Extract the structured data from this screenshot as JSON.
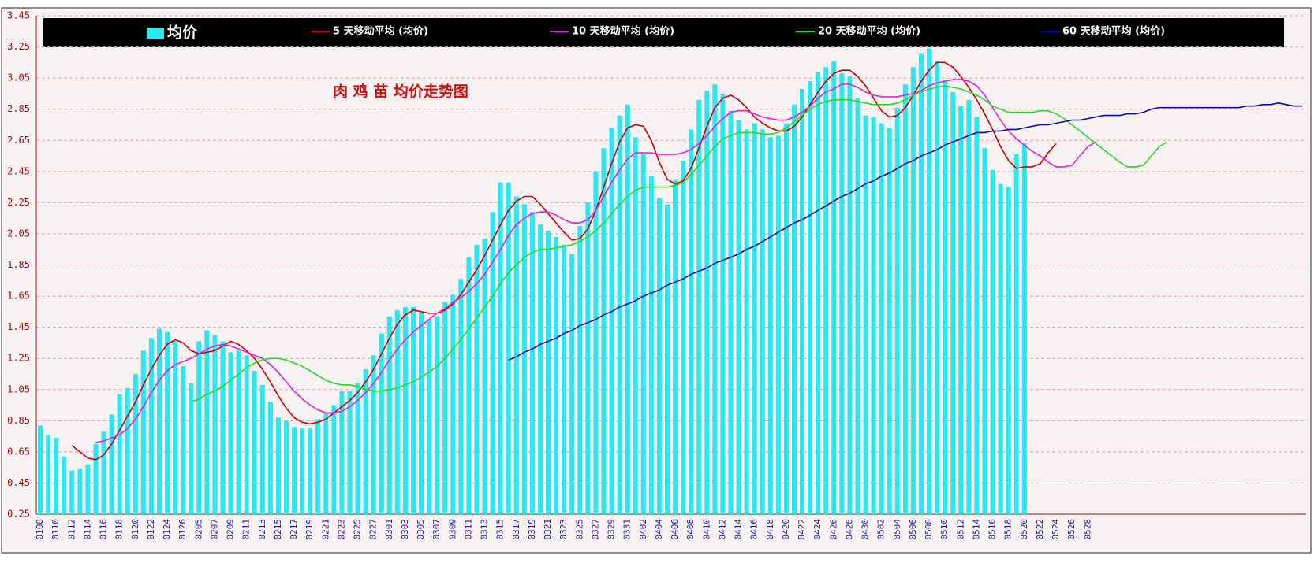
{
  "chart_data": {
    "type": "bar_line",
    "title": "肉 鸡 苗 均价走势图",
    "legend": "top",
    "grid": true,
    "ylim": [
      0.25,
      3.45
    ],
    "yticks": [
      0.25,
      0.45,
      0.65,
      0.85,
      1.05,
      1.25,
      1.45,
      1.65,
      1.85,
      2.05,
      2.25,
      2.45,
      2.65,
      2.85,
      3.05,
      3.25,
      3.45
    ],
    "categories": [
      "0108",
      null,
      "0110",
      null,
      "0112",
      null,
      "0114",
      null,
      "0116",
      null,
      "0118",
      null,
      "0120",
      null,
      "0122",
      null,
      "0124",
      null,
      "0126",
      null,
      "0205",
      null,
      "0207",
      null,
      "0209",
      null,
      "0211",
      null,
      "0213",
      null,
      "0215",
      null,
      "0217",
      null,
      "0219",
      null,
      "0221",
      null,
      "0223",
      null,
      "0225",
      null,
      "0227",
      null,
      "0301",
      null,
      "0303",
      null,
      "0305",
      null,
      "0307",
      null,
      "0309",
      null,
      "0311",
      null,
      "0313",
      null,
      "0315",
      null,
      "0317",
      null,
      "0319",
      null,
      "0321",
      null,
      "0323",
      null,
      "0325",
      null,
      "0327",
      null,
      "0329",
      null,
      "0331",
      null,
      "0402",
      null,
      "0404",
      null,
      "0406",
      null,
      "0408",
      null,
      "0410",
      null,
      "0412",
      null,
      "0414",
      null,
      "0416",
      null,
      "0418",
      null,
      "0420",
      null,
      "0422",
      null,
      "0424",
      null,
      "0426",
      null,
      "0428",
      null,
      "0430",
      null,
      "0502",
      null,
      "0504",
      null,
      "0506",
      null,
      "0508",
      null,
      "0510",
      null,
      "0512",
      null,
      "0514",
      null,
      "0516",
      null,
      "0518",
      null,
      "0520",
      null,
      "0522",
      null,
      "0524",
      null,
      "0526",
      null,
      "0528",
      null,
      null,
      null,
      null,
      null,
      null,
      null,
      null,
      null,
      null,
      null,
      null,
      null,
      null,
      null,
      null,
      null,
      null,
      null,
      null,
      null,
      null,
      null,
      null,
      null,
      null,
      null
    ],
    "series": [
      {
        "name": "均价",
        "type": "bar",
        "color": "#2ae8f2",
        "values": [
          0.82,
          0.76,
          0.74,
          0.62,
          0.53,
          0.54,
          0.57,
          0.7,
          0.78,
          0.89,
          1.02,
          1.06,
          1.15,
          1.3,
          1.38,
          1.44,
          1.42,
          1.36,
          1.2,
          1.09,
          1.36,
          1.43,
          1.4,
          1.36,
          1.29,
          1.3,
          1.27,
          1.17,
          1.08,
          0.97,
          0.87,
          0.85,
          0.81,
          0.8,
          0.8,
          0.86,
          0.9,
          0.95,
          1.04,
          1.04,
          1.09,
          1.18,
          1.27,
          1.41,
          1.52,
          1.56,
          1.58,
          1.58,
          1.54,
          1.5,
          1.52,
          1.61,
          1.66,
          1.76,
          1.9,
          1.98,
          2.02,
          2.19,
          2.38,
          2.38,
          2.29,
          2.24,
          2.19,
          2.11,
          2.07,
          2.03,
          1.98,
          1.92,
          2.1,
          2.25,
          2.45,
          2.6,
          2.73,
          2.81,
          2.88,
          2.67,
          2.56,
          2.42,
          2.28,
          2.24,
          2.4,
          2.52,
          2.72,
          2.91,
          2.97,
          3.01,
          2.95,
          2.84,
          2.78,
          2.72,
          2.76,
          2.72,
          2.67,
          2.68,
          2.76,
          2.88,
          2.98,
          3.03,
          3.09,
          3.12,
          3.16,
          3.08,
          3.06,
          2.92,
          2.81,
          2.8,
          2.76,
          2.73,
          2.86,
          3.01,
          3.12,
          3.21,
          3.24,
          3.16,
          3.04,
          2.96,
          2.87,
          2.91,
          2.8,
          2.6,
          2.46,
          2.37,
          2.35,
          2.56,
          2.63,
          null,
          null,
          null,
          null,
          null,
          null,
          null,
          null,
          null,
          null,
          null,
          null,
          null,
          null,
          null,
          null,
          null,
          null,
          null,
          null,
          null,
          null,
          null,
          null,
          null,
          null,
          null,
          null,
          null,
          null,
          null,
          null,
          null,
          null,
          null
        ]
      },
      {
        "name": "5 天移动平均 (均价)",
        "type": "line",
        "color": "#cc0000",
        "values": [
          null,
          null,
          null,
          null,
          0.69,
          0.65,
          0.61,
          0.6,
          0.63,
          0.7,
          0.79,
          0.88,
          0.97,
          1.08,
          1.18,
          1.27,
          1.34,
          1.37,
          1.35,
          1.3,
          1.28,
          1.29,
          1.3,
          1.33,
          1.36,
          1.34,
          1.3,
          1.25,
          1.18,
          1.1,
          1.01,
          0.93,
          0.87,
          0.84,
          0.83,
          0.84,
          0.86,
          0.9,
          0.94,
          0.98,
          1.03,
          1.1,
          1.18,
          1.28,
          1.38,
          1.47,
          1.53,
          1.56,
          1.55,
          1.54,
          1.54,
          1.56,
          1.6,
          1.66,
          1.74,
          1.82,
          1.91,
          2.01,
          2.11,
          2.2,
          2.26,
          2.29,
          2.29,
          2.24,
          2.18,
          2.12,
          2.06,
          2.01,
          2.02,
          2.08,
          2.2,
          2.35,
          2.5,
          2.64,
          2.73,
          2.75,
          2.74,
          2.65,
          2.51,
          2.4,
          2.37,
          2.39,
          2.47,
          2.6,
          2.74,
          2.86,
          2.92,
          2.94,
          2.91,
          2.86,
          2.8,
          2.76,
          2.73,
          2.71,
          2.71,
          2.74,
          2.8,
          2.88,
          2.96,
          3.03,
          3.08,
          3.1,
          3.1,
          3.06,
          3.0,
          2.92,
          2.84,
          2.8,
          2.81,
          2.86,
          2.94,
          3.03,
          3.1,
          3.15,
          3.15,
          3.12,
          3.06,
          2.99,
          2.91,
          2.82,
          2.72,
          2.61,
          2.52,
          2.47,
          2.48,
          2.48,
          2.5,
          2.57,
          2.63,
          null,
          null,
          null,
          null,
          null,
          null,
          null,
          null,
          null,
          null,
          null,
          null,
          null,
          null,
          null,
          null,
          null,
          null,
          null,
          null,
          null,
          null,
          null,
          null,
          null,
          null,
          null,
          null,
          null,
          null,
          null
        ]
      },
      {
        "name": "10 天移动平均 (均价)",
        "type": "line",
        "color": "#dd22dd",
        "values": [
          null,
          null,
          null,
          null,
          null,
          null,
          null,
          0.71,
          0.72,
          0.74,
          0.76,
          0.8,
          0.86,
          0.94,
          1.03,
          1.11,
          1.17,
          1.21,
          1.23,
          1.25,
          1.28,
          1.31,
          1.33,
          1.34,
          1.33,
          1.31,
          1.29,
          1.27,
          1.25,
          1.21,
          1.16,
          1.1,
          1.04,
          0.99,
          0.95,
          0.92,
          0.9,
          0.9,
          0.91,
          0.94,
          0.98,
          1.03,
          1.09,
          1.16,
          1.24,
          1.31,
          1.37,
          1.42,
          1.46,
          1.5,
          1.54,
          1.57,
          1.61,
          1.64,
          1.68,
          1.73,
          1.79,
          1.87,
          1.95,
          2.04,
          2.11,
          2.15,
          2.18,
          2.19,
          2.19,
          2.17,
          2.14,
          2.12,
          2.12,
          2.14,
          2.2,
          2.29,
          2.38,
          2.46,
          2.53,
          2.57,
          2.57,
          2.57,
          2.56,
          2.56,
          2.56,
          2.57,
          2.59,
          2.63,
          2.68,
          2.74,
          2.79,
          2.83,
          2.84,
          2.84,
          2.82,
          2.8,
          2.79,
          2.78,
          2.78,
          2.8,
          2.83,
          2.87,
          2.92,
          2.96,
          2.98,
          3.01,
          3.01,
          2.99,
          2.96,
          2.94,
          2.93,
          2.93,
          2.93,
          2.94,
          2.95,
          2.97,
          3.0,
          3.02,
          3.03,
          3.04,
          3.04,
          3.03,
          3.0,
          2.94,
          2.86,
          2.78,
          2.71,
          2.66,
          2.62,
          2.58,
          2.55,
          2.51,
          2.48,
          2.48,
          2.49,
          2.55,
          2.61,
          2.64,
          null,
          null,
          null,
          null,
          null,
          null,
          null,
          null,
          null,
          null,
          null,
          null,
          null,
          null,
          null,
          null,
          null,
          null,
          null,
          null,
          null,
          null,
          null,
          null,
          null,
          null
        ]
      },
      {
        "name": "20 天移动平均 (均价)",
        "type": "line",
        "color": "#22dd22",
        "values": [
          null,
          null,
          null,
          null,
          null,
          null,
          null,
          null,
          null,
          null,
          null,
          null,
          null,
          null,
          null,
          null,
          null,
          null,
          null,
          0.97,
          0.99,
          1.02,
          1.04,
          1.07,
          1.11,
          1.15,
          1.19,
          1.22,
          1.24,
          1.25,
          1.25,
          1.24,
          1.22,
          1.2,
          1.17,
          1.14,
          1.11,
          1.09,
          1.08,
          1.08,
          1.07,
          1.05,
          1.04,
          1.04,
          1.05,
          1.06,
          1.08,
          1.1,
          1.13,
          1.16,
          1.2,
          1.25,
          1.31,
          1.37,
          1.44,
          1.51,
          1.58,
          1.65,
          1.73,
          1.8,
          1.85,
          1.9,
          1.93,
          1.95,
          1.95,
          1.96,
          1.97,
          1.98,
          2.0,
          2.03,
          2.07,
          2.12,
          2.18,
          2.24,
          2.29,
          2.33,
          2.35,
          2.35,
          2.35,
          2.35,
          2.36,
          2.38,
          2.43,
          2.49,
          2.55,
          2.61,
          2.66,
          2.68,
          2.7,
          2.7,
          2.7,
          2.69,
          2.69,
          2.7,
          2.73,
          2.77,
          2.81,
          2.85,
          2.88,
          2.9,
          2.91,
          2.91,
          2.91,
          2.9,
          2.89,
          2.88,
          2.88,
          2.88,
          2.89,
          2.91,
          2.94,
          2.96,
          2.98,
          2.99,
          3.0,
          2.99,
          2.98,
          2.96,
          2.94,
          2.91,
          2.87,
          2.85,
          2.83,
          2.83,
          2.83,
          2.83,
          2.84,
          2.84,
          2.82,
          2.79,
          2.75,
          2.71,
          2.67,
          2.63,
          2.59,
          2.55,
          2.51,
          2.48,
          2.48,
          2.49,
          2.55,
          2.61,
          2.64,
          null,
          null,
          null,
          null,
          null,
          null,
          null,
          null,
          null,
          null,
          null,
          null,
          null,
          null,
          null,
          null,
          null
        ]
      },
      {
        "name": "60 天移动平均 (均价)",
        "type": "line",
        "color": "#0a0aa8",
        "values": [
          null,
          null,
          null,
          null,
          null,
          null,
          null,
          null,
          null,
          null,
          null,
          null,
          null,
          null,
          null,
          null,
          null,
          null,
          null,
          null,
          null,
          null,
          null,
          null,
          null,
          null,
          null,
          null,
          null,
          null,
          null,
          null,
          null,
          null,
          null,
          null,
          null,
          null,
          null,
          null,
          null,
          null,
          null,
          null,
          null,
          null,
          null,
          null,
          null,
          null,
          null,
          null,
          null,
          null,
          null,
          null,
          null,
          null,
          null,
          1.24,
          1.26,
          1.29,
          1.31,
          1.34,
          1.36,
          1.38,
          1.41,
          1.43,
          1.46,
          1.48,
          1.5,
          1.53,
          1.55,
          1.58,
          1.6,
          1.62,
          1.65,
          1.67,
          1.69,
          1.72,
          1.74,
          1.76,
          1.79,
          1.81,
          1.83,
          1.86,
          1.88,
          1.9,
          1.92,
          1.95,
          1.97,
          2.0,
          2.03,
          2.06,
          2.09,
          2.12,
          2.14,
          2.17,
          2.2,
          2.23,
          2.26,
          2.29,
          2.31,
          2.34,
          2.37,
          2.39,
          2.42,
          2.44,
          2.47,
          2.5,
          2.52,
          2.55,
          2.57,
          2.59,
          2.62,
          2.64,
          2.66,
          2.68,
          2.7,
          2.7,
          2.71,
          2.71,
          2.72,
          2.72,
          2.73,
          2.74,
          2.75,
          2.75,
          2.76,
          2.77,
          2.78,
          2.78,
          2.79,
          2.8,
          2.81,
          2.81,
          2.81,
          2.82,
          2.82,
          2.83,
          2.85,
          2.86,
          2.86,
          2.86,
          2.86,
          2.86,
          2.86,
          2.86,
          2.86,
          2.86,
          2.86,
          2.86,
          2.87,
          2.87,
          2.88,
          2.88,
          2.89,
          2.88,
          2.87,
          2.87
        ]
      }
    ]
  }
}
